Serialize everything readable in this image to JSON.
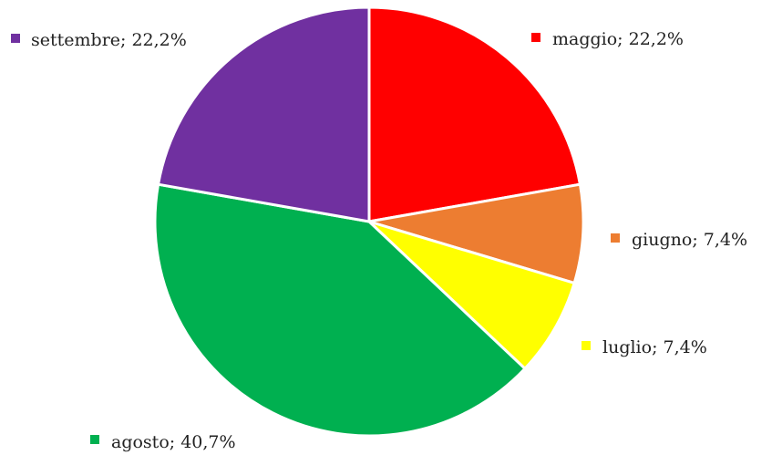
{
  "chart_data": {
    "type": "pie",
    "slices": [
      {
        "name": "maggio",
        "value": 22.2,
        "label": "maggio; 22,2%",
        "color": "#FF0000"
      },
      {
        "name": "giugno",
        "value": 7.4,
        "label": "giugno; 7,4%",
        "color": "#ED7D31"
      },
      {
        "name": "luglio",
        "value": 7.4,
        "label": "luglio; 7,4%",
        "color": "#FFFF00"
      },
      {
        "name": "agosto",
        "value": 40.7,
        "label": "agosto; 40,7%",
        "color": "#00B050"
      },
      {
        "name": "settembre",
        "value": 22.2,
        "label": "settembre; 22,2%",
        "color": "#7030A0"
      }
    ],
    "start_angle_deg": 0,
    "direction": "clockwise",
    "slice_border_color": "#FFFFFF"
  }
}
